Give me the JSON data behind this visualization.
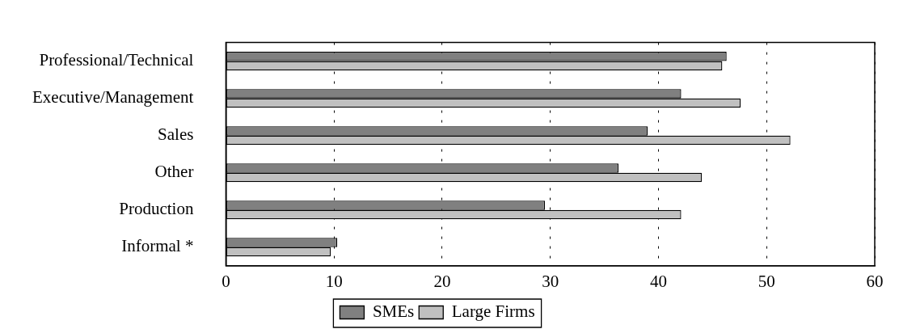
{
  "chart_data": {
    "type": "bar",
    "orientation": "horizontal",
    "categories": [
      "Professional/Technical",
      "Executive/Management",
      "Sales",
      "Other",
      "Production",
      "Informal *"
    ],
    "series": [
      {
        "name": "SMEs",
        "color": "#808080",
        "values": [
          46.3,
          42.1,
          39.0,
          36.3,
          29.5,
          10.3
        ]
      },
      {
        "name": "Large Firms",
        "color": "#c0c0c0",
        "values": [
          45.9,
          47.6,
          52.2,
          44.0,
          42.1,
          9.7
        ]
      }
    ],
    "xlim": [
      0,
      60
    ],
    "xticks": [
      0,
      10,
      20,
      30,
      40,
      50,
      60
    ],
    "grid": "x",
    "legend": "bottom"
  }
}
